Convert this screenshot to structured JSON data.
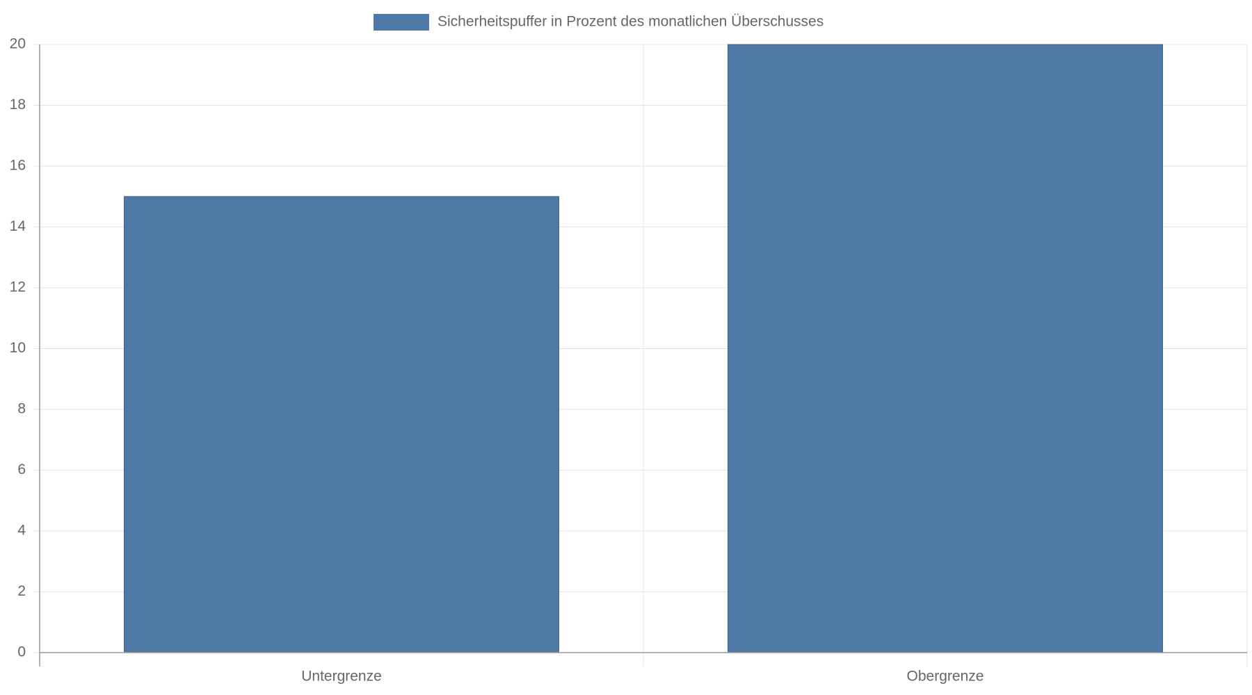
{
  "chart_data": {
    "type": "bar",
    "categories": [
      "Untergrenze",
      "Obergrenze"
    ],
    "series": [
      {
        "name": "Sicherheitspuffer in Prozent des monatlichen Überschusses",
        "color": "#4e79a7",
        "values": [
          15,
          20
        ]
      }
    ],
    "ylim": [
      0,
      20
    ],
    "yticks": [
      0,
      2,
      4,
      6,
      8,
      10,
      12,
      14,
      16,
      18,
      20
    ],
    "grid": true,
    "legend": "top"
  }
}
